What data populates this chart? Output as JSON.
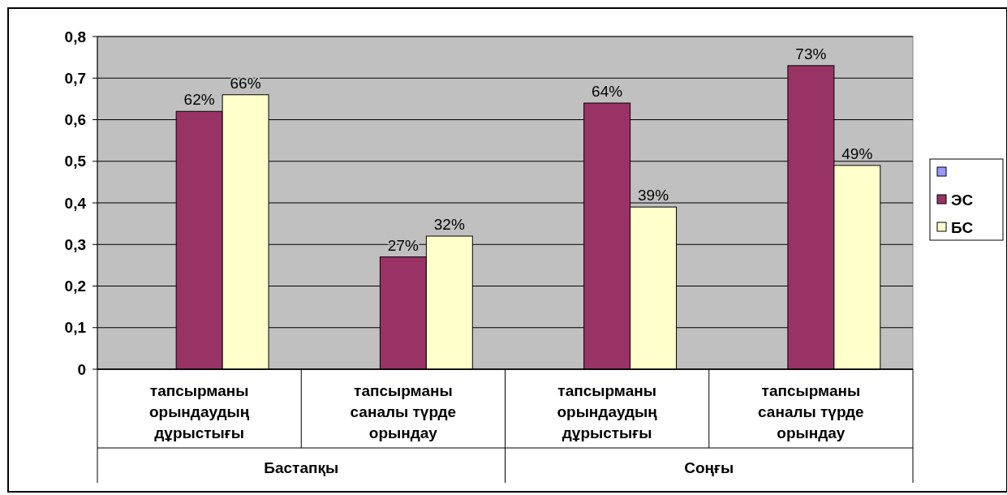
{
  "chart_data": {
    "type": "bar",
    "categories": [
      "тапсырманы орындаудың дұрыстығы",
      "тапсырманы саналы түрде орындау",
      "тапсырманы орындаудың дұрыстығы",
      "тапсырманы саналы түрде орындау"
    ],
    "annotations": [
      "Бастапқы",
      "Соңғы"
    ],
    "series": [
      {
        "color": "#9999ff",
        "values": [
          null,
          null,
          null,
          null
        ]
      },
      {
        "name": "ЭС",
        "color": "#993366",
        "values": [
          0.62,
          0.27,
          0.64,
          0.73
        ],
        "value_labels": [
          "62%",
          "27%",
          "64%",
          "73%"
        ]
      },
      {
        "name": "БС",
        "color": "#ffffcc",
        "values": [
          0.66,
          0.32,
          0.39,
          0.49
        ],
        "value_labels": [
          "66%",
          "32%",
          "39%",
          "49%"
        ]
      }
    ],
    "ylim": [
      0,
      0.8
    ],
    "yticks": [
      {
        "value": 0,
        "label": "0"
      },
      {
        "value": 0.1,
        "label": "0,1"
      },
      {
        "value": 0.2,
        "label": "0,2"
      },
      {
        "value": 0.3,
        "label": "0,3"
      },
      {
        "value": 0.4,
        "label": "0,4"
      },
      {
        "value": 0.5,
        "label": "0,5"
      },
      {
        "value": 0.6,
        "label": "0,6"
      },
      {
        "value": 0.7,
        "label": "0,7"
      },
      {
        "value": 0.8,
        "label": "0,8"
      }
    ],
    "grid": "y",
    "legend": "right"
  }
}
